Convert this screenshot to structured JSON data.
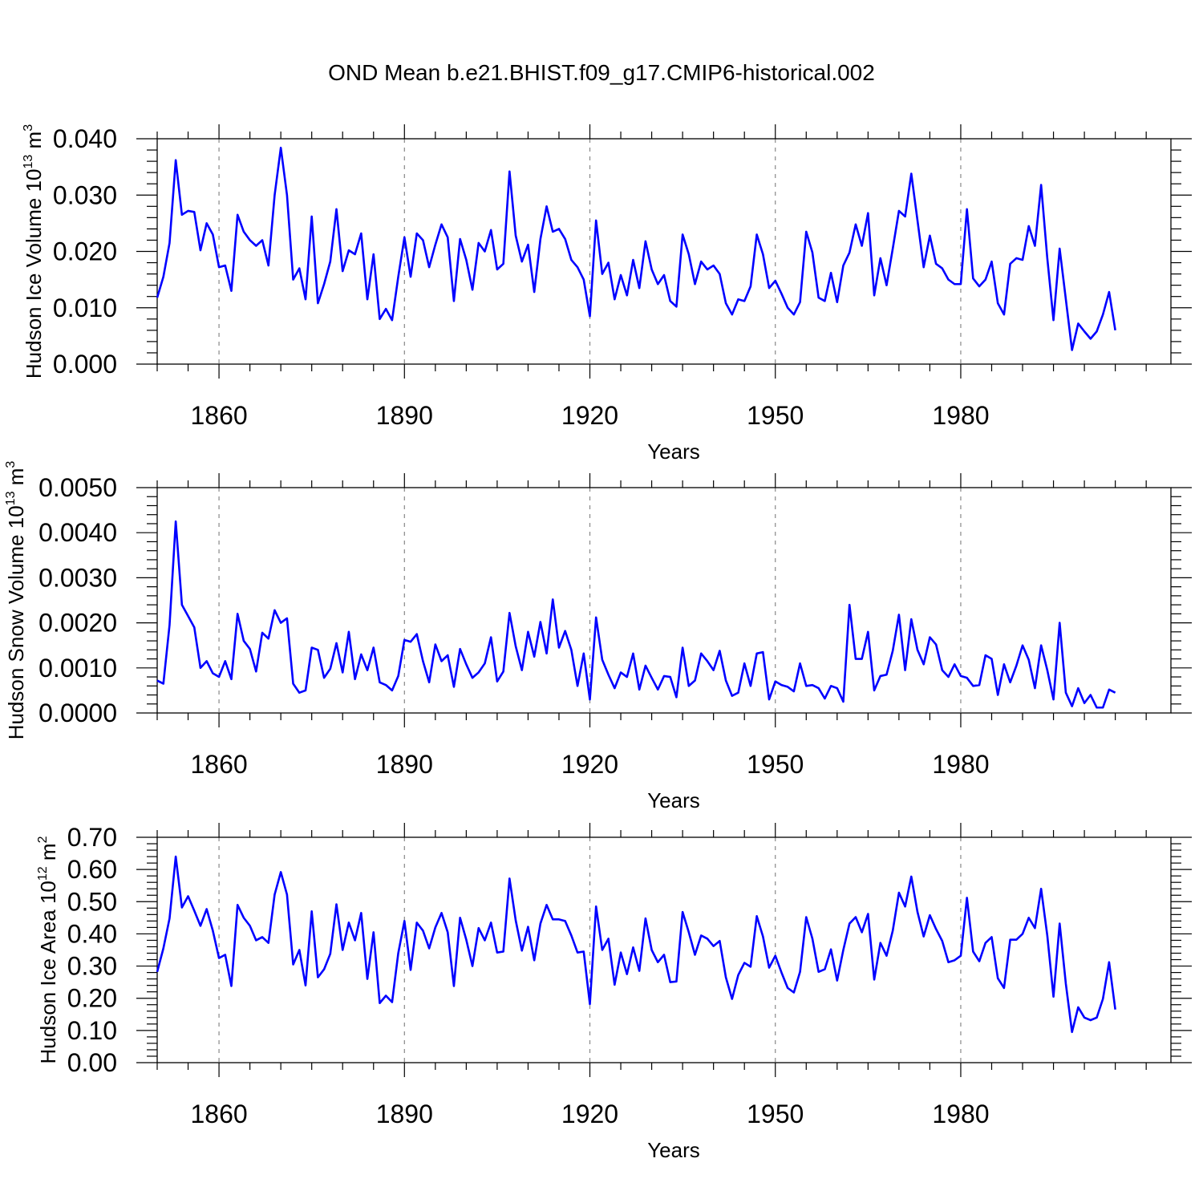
{
  "chart_data": {
    "type": "line",
    "title": "OND Mean b.e21.BHIST.f09_g17.CMIP6-historical.002",
    "x_start": 1850,
    "x_end": 2014,
    "xlim": [
      1850,
      2014
    ],
    "xticks": [
      1860,
      1890,
      1920,
      1950,
      1980
    ],
    "xtick_labels": [
      "1860",
      "1890",
      "1920",
      "1950",
      "1980"
    ],
    "grid": "dashed vertical lines at major x ticks",
    "series_color": "#0000ff",
    "panels": [
      {
        "key": "ice",
        "ylabel_main": "Hudson Ice Volume 10",
        "ylabel_exp": "13",
        "ylabel_unit": " m",
        "ylabel_unit_exp": "3",
        "xlabel": "Years",
        "ylim": [
          0.0,
          0.04
        ],
        "yticks": [
          0.0,
          0.01,
          0.02,
          0.03,
          0.04
        ],
        "ytick_labels": [
          "0.000",
          "0.010",
          "0.020",
          "0.030",
          "0.040"
        ],
        "minor_step": 0.002,
        "name": "Hudson Ice Volume",
        "values": [
          0.0118,
          0.0155,
          0.0215,
          0.0362,
          0.0265,
          0.0272,
          0.027,
          0.0202,
          0.025,
          0.023,
          0.0172,
          0.0175,
          0.013,
          0.0265,
          0.0235,
          0.022,
          0.021,
          0.022,
          0.0175,
          0.03,
          0.0384,
          0.03,
          0.015,
          0.017,
          0.0115,
          0.0262,
          0.0108,
          0.0142,
          0.0182,
          0.0275,
          0.0165,
          0.0202,
          0.0195,
          0.0232,
          0.0115,
          0.0195,
          0.008,
          0.0098,
          0.0078,
          0.0155,
          0.0225,
          0.0155,
          0.0232,
          0.022,
          0.0172,
          0.0212,
          0.0248,
          0.0225,
          0.0112,
          0.0222,
          0.0185,
          0.0132,
          0.0215,
          0.02,
          0.0238,
          0.0168,
          0.0178,
          0.0342,
          0.0228,
          0.0182,
          0.0212,
          0.0128,
          0.0222,
          0.028,
          0.0235,
          0.024,
          0.0222,
          0.0185,
          0.0172,
          0.015,
          0.0085,
          0.0255,
          0.016,
          0.018,
          0.0115,
          0.0158,
          0.0122,
          0.0185,
          0.0135,
          0.0218,
          0.0168,
          0.0142,
          0.0158,
          0.0112,
          0.0102,
          0.023,
          0.0195,
          0.0142,
          0.0182,
          0.0168,
          0.0175,
          0.016,
          0.0108,
          0.0088,
          0.0115,
          0.0112,
          0.0138,
          0.023,
          0.0195,
          0.0135,
          0.0148,
          0.0125,
          0.01,
          0.0088,
          0.011,
          0.0235,
          0.0198,
          0.0118,
          0.0112,
          0.0162,
          0.011,
          0.0175,
          0.0198,
          0.0248,
          0.021,
          0.0268,
          0.0122,
          0.0188,
          0.014,
          0.0205,
          0.0272,
          0.0262,
          0.0338,
          0.0255,
          0.0172,
          0.0228,
          0.0178,
          0.017,
          0.015,
          0.0142,
          0.0142,
          0.0275,
          0.0152,
          0.0138,
          0.015,
          0.0182,
          0.0108,
          0.0088,
          0.0178,
          0.0188,
          0.0185,
          0.0245,
          0.021,
          0.0318,
          0.0188,
          0.0078,
          0.0205,
          0.0115,
          0.0025,
          0.0072,
          0.0058,
          0.0045,
          0.0058,
          0.0088,
          0.0128,
          0.006
        ]
      },
      {
        "key": "snow",
        "ylabel_main": "Hudson Snow Volume 10",
        "ylabel_exp": "13",
        "ylabel_unit": " m",
        "ylabel_unit_exp": "3",
        "xlabel": "Years",
        "ylim": [
          0.0,
          0.005
        ],
        "yticks": [
          0.0,
          0.001,
          0.002,
          0.003,
          0.004,
          0.005
        ],
        "ytick_labels": [
          "0.0000",
          "0.0010",
          "0.0020",
          "0.0030",
          "0.0040",
          "0.0050"
        ],
        "minor_step": 0.0002,
        "name": "Hudson Snow Volume",
        "values": [
          0.00072,
          0.00065,
          0.00195,
          0.00425,
          0.0024,
          0.00215,
          0.0019,
          0.001,
          0.00115,
          0.00088,
          0.0008,
          0.00115,
          0.00075,
          0.0022,
          0.0016,
          0.00142,
          0.00092,
          0.00178,
          0.00165,
          0.00228,
          0.002,
          0.0021,
          0.00065,
          0.00045,
          0.0005,
          0.00145,
          0.0014,
          0.00078,
          0.00098,
          0.00155,
          0.0009,
          0.0018,
          0.00075,
          0.0013,
          0.00095,
          0.00145,
          0.00068,
          0.00062,
          0.0005,
          0.00082,
          0.00162,
          0.00158,
          0.00175,
          0.00115,
          0.00068,
          0.00152,
          0.00115,
          0.00128,
          0.00058,
          0.00142,
          0.00108,
          0.00078,
          0.0009,
          0.0011,
          0.00168,
          0.0007,
          0.00092,
          0.00222,
          0.00148,
          0.00095,
          0.0018,
          0.00125,
          0.00202,
          0.00132,
          0.00252,
          0.00145,
          0.00182,
          0.0014,
          0.0006,
          0.00132,
          0.0003,
          0.00212,
          0.00118,
          0.00085,
          0.00055,
          0.0009,
          0.0008,
          0.00132,
          0.00052,
          0.00105,
          0.00078,
          0.00052,
          0.00082,
          0.0008,
          0.00035,
          0.00145,
          0.0006,
          0.00072,
          0.00132,
          0.00115,
          0.00095,
          0.00138,
          0.00072,
          0.00038,
          0.00045,
          0.0011,
          0.0006,
          0.00132,
          0.00135,
          0.0003,
          0.0007,
          0.00062,
          0.00058,
          0.00048,
          0.0011,
          0.0006,
          0.00062,
          0.00055,
          0.00032,
          0.0006,
          0.00055,
          0.00025,
          0.0024,
          0.0012,
          0.0012,
          0.0018,
          0.0005,
          0.00082,
          0.00085,
          0.00138,
          0.00218,
          0.00095,
          0.00208,
          0.0014,
          0.00108,
          0.00168,
          0.00152,
          0.00095,
          0.0008,
          0.00108,
          0.00082,
          0.00078,
          0.0006,
          0.00062,
          0.00128,
          0.0012,
          0.0004,
          0.00108,
          0.00068,
          0.00105,
          0.0015,
          0.00118,
          0.00055,
          0.0015,
          0.00095,
          0.0003,
          0.002,
          0.00045,
          0.00015,
          0.00055,
          0.00022,
          0.0004,
          0.00012,
          0.00012,
          0.00052,
          0.00045
        ]
      },
      {
        "key": "area",
        "ylabel_main": "Hudson Ice Area 10",
        "ylabel_exp": "12",
        "ylabel_unit": " m",
        "ylabel_unit_exp": "2",
        "xlabel": "Years",
        "ylim": [
          0.0,
          0.7
        ],
        "yticks": [
          0.0,
          0.1,
          0.2,
          0.3,
          0.4,
          0.5,
          0.6,
          0.7
        ],
        "ytick_labels": [
          "0.00",
          "0.10",
          "0.20",
          "0.30",
          "0.40",
          "0.50",
          "0.60",
          "0.70"
        ],
        "minor_step": 0.02,
        "name": "Hudson Ice Area",
        "values": [
          0.282,
          0.355,
          0.448,
          0.64,
          0.482,
          0.517,
          0.472,
          0.425,
          0.477,
          0.41,
          0.325,
          0.335,
          0.238,
          0.49,
          0.45,
          0.425,
          0.38,
          0.39,
          0.372,
          0.522,
          0.592,
          0.522,
          0.305,
          0.35,
          0.24,
          0.47,
          0.265,
          0.29,
          0.338,
          0.492,
          0.35,
          0.435,
          0.38,
          0.465,
          0.26,
          0.405,
          0.185,
          0.208,
          0.188,
          0.34,
          0.44,
          0.288,
          0.435,
          0.41,
          0.355,
          0.42,
          0.465,
          0.405,
          0.238,
          0.45,
          0.382,
          0.3,
          0.418,
          0.38,
          0.435,
          0.342,
          0.345,
          0.572,
          0.442,
          0.348,
          0.422,
          0.318,
          0.432,
          0.49,
          0.445,
          0.445,
          0.44,
          0.395,
          0.342,
          0.345,
          0.182,
          0.485,
          0.35,
          0.385,
          0.242,
          0.342,
          0.275,
          0.358,
          0.285,
          0.448,
          0.35,
          0.312,
          0.335,
          0.25,
          0.252,
          0.468,
          0.405,
          0.335,
          0.395,
          0.385,
          0.362,
          0.378,
          0.265,
          0.198,
          0.272,
          0.31,
          0.298,
          0.455,
          0.392,
          0.295,
          0.332,
          0.28,
          0.232,
          0.218,
          0.282,
          0.452,
          0.385,
          0.282,
          0.29,
          0.352,
          0.255,
          0.35,
          0.432,
          0.452,
          0.405,
          0.462,
          0.258,
          0.372,
          0.332,
          0.41,
          0.528,
          0.485,
          0.578,
          0.468,
          0.392,
          0.458,
          0.415,
          0.378,
          0.312,
          0.318,
          0.332,
          0.512,
          0.345,
          0.315,
          0.372,
          0.39,
          0.262,
          0.232,
          0.382,
          0.382,
          0.4,
          0.45,
          0.418,
          0.54,
          0.395,
          0.205,
          0.432,
          0.245,
          0.095,
          0.172,
          0.14,
          0.132,
          0.14,
          0.198,
          0.312,
          0.165
        ]
      }
    ]
  }
}
